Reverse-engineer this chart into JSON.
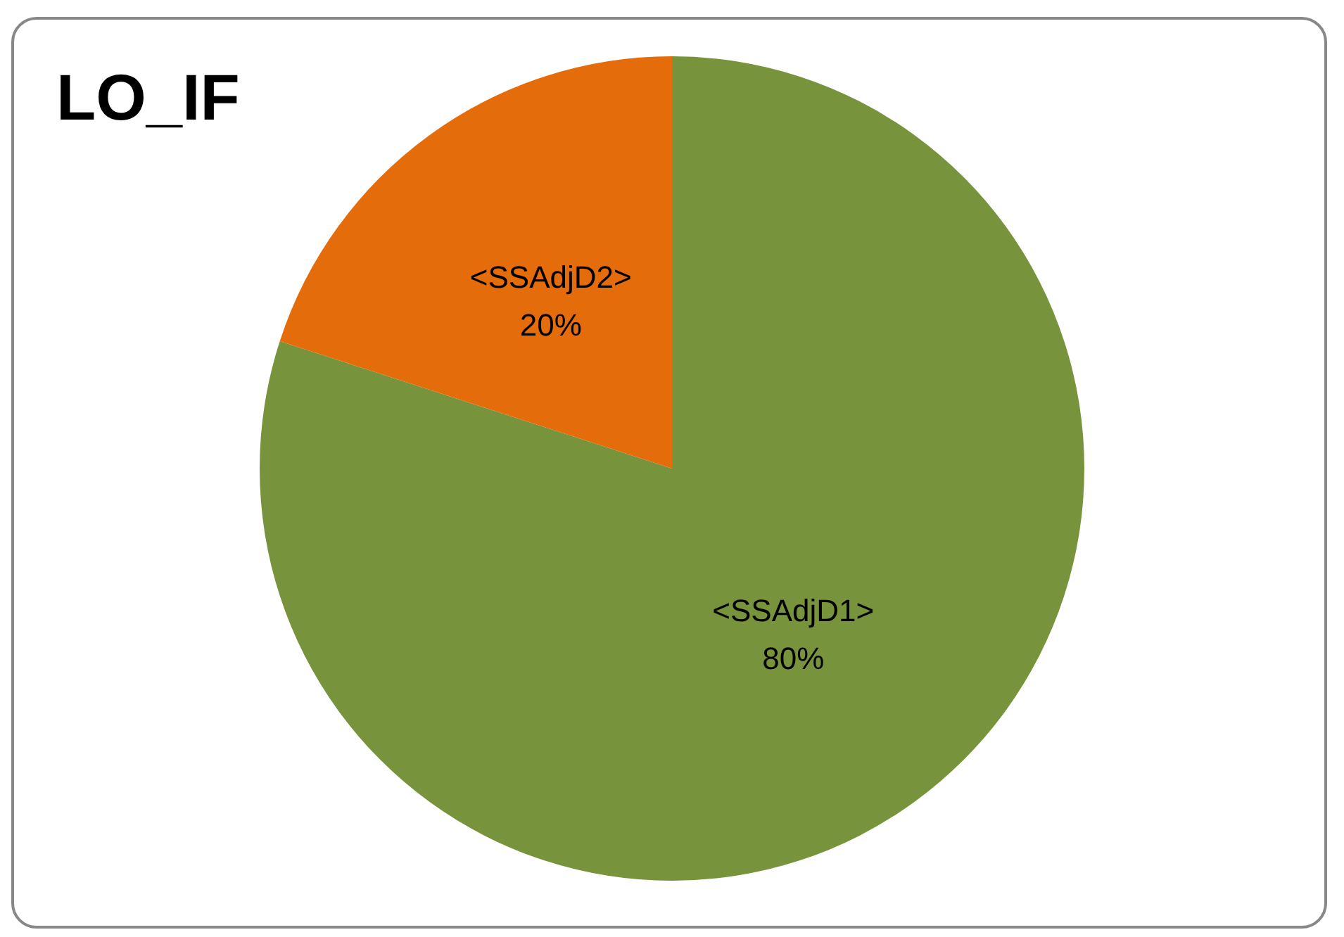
{
  "chart_data": {
    "type": "pie",
    "title": "LO_IF",
    "categories": [
      "<SSAdjD1>",
      "<SSAdjD2>"
    ],
    "values": [
      80,
      20
    ],
    "colors": [
      "#77933c",
      "#e46c0a"
    ],
    "value_labels": [
      "80%",
      "20%"
    ],
    "legend": false
  }
}
